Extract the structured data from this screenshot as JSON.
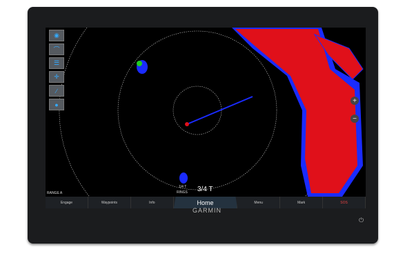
{
  "sidebar": {
    "items": [
      {
        "icon": "radar-icon"
      },
      {
        "icon": "gain-icon"
      },
      {
        "icon": "list-icon"
      },
      {
        "icon": "target-icon"
      },
      {
        "icon": "sea-clutter-icon"
      },
      {
        "icon": "rain-clutter-icon"
      }
    ]
  },
  "overlay": {
    "range_label": "RANGE A",
    "rings_value": "1/4 T",
    "rings_label": "RINGS",
    "range_value": "3/4 T"
  },
  "zoom": {
    "in": "+",
    "out": "−"
  },
  "bottom_bar": {
    "items": [
      "Engage",
      "Waypoints",
      "Info",
      "Home",
      "Menu",
      "Mark",
      "SOS"
    ]
  },
  "brand": "GARMIN",
  "colors": {
    "echo_strong": "#e0101a",
    "echo_weak": "#1a2bff",
    "accent": "#24323f"
  }
}
